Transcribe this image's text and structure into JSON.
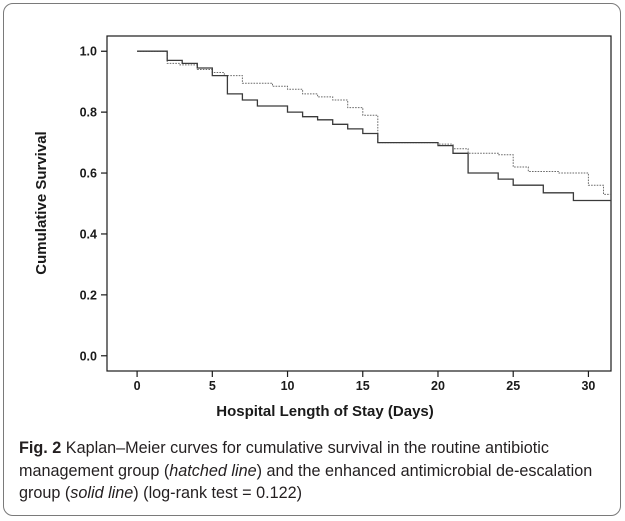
{
  "chart_data": {
    "type": "line",
    "step": true,
    "xlabel": "Hospital Length of Stay (Days)",
    "ylabel": "Cumulative Survival",
    "xlim": [
      -2,
      31.5
    ],
    "ylim": [
      -0.05,
      1.05
    ],
    "xticks": [
      0,
      5,
      10,
      15,
      20,
      25,
      30
    ],
    "yticks": [
      0.0,
      0.2,
      0.4,
      0.6,
      0.8,
      1.0
    ],
    "ytick_labels": [
      "0.0",
      "0.2",
      "0.4",
      "0.6",
      "0.8",
      "1.0"
    ],
    "grid": false,
    "legend": "none",
    "series": [
      {
        "style": "hatched",
        "color": "#6b6b6b",
        "x": [
          0,
          2,
          2.8,
          4,
          5,
          5.8,
          7,
          9,
          10,
          11,
          12,
          13,
          14,
          15,
          16,
          20,
          21,
          22,
          24,
          25,
          26,
          28,
          30,
          31,
          31.5
        ],
        "y": [
          1.0,
          0.96,
          0.955,
          0.94,
          0.93,
          0.92,
          0.895,
          0.885,
          0.875,
          0.86,
          0.85,
          0.84,
          0.815,
          0.79,
          0.7,
          0.695,
          0.68,
          0.665,
          0.66,
          0.62,
          0.605,
          0.6,
          0.56,
          0.53,
          0.53
        ]
      },
      {
        "style": "solid",
        "color": "#3a3a3a",
        "x": [
          0,
          2,
          3,
          4,
          5,
          6,
          7,
          8,
          10,
          11,
          12,
          13,
          14,
          15,
          16,
          20,
          21,
          22,
          24,
          25,
          27,
          29,
          31.5
        ],
        "y": [
          1.0,
          0.97,
          0.96,
          0.945,
          0.92,
          0.86,
          0.84,
          0.82,
          0.8,
          0.785,
          0.775,
          0.76,
          0.745,
          0.73,
          0.7,
          0.69,
          0.665,
          0.6,
          0.58,
          0.56,
          0.535,
          0.51,
          0.51
        ]
      }
    ]
  },
  "caption": {
    "fig_label": "Fig. 2",
    "text_1": " Kaplan–Meier curves for cumulative survival in the routine antibiotic management group (",
    "em_1": "hatched line",
    "text_2": ") and the enhanced antimicrobial de-escalation group (",
    "em_2": "solid line",
    "text_3": ") (log-rank test = 0.122)"
  }
}
